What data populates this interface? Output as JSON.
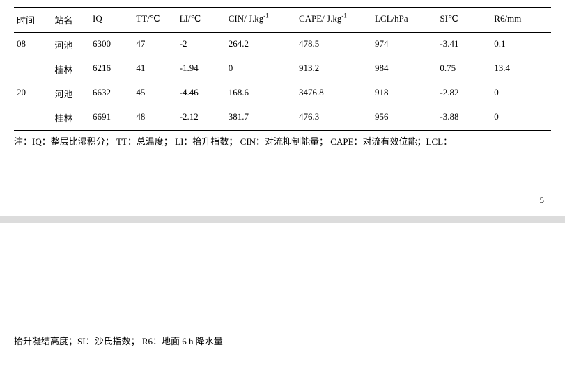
{
  "table": {
    "columns": {
      "time": "时间",
      "station": "站名",
      "iq": "IQ",
      "tt": "TT/℃",
      "li": "LI/℃",
      "cin_prefix": "CIN/ J.kg",
      "cin_sup": "-1",
      "cape_prefix": "CAPE/ J.kg",
      "cape_sup": "-1",
      "lcl": "LCL/hPa",
      "si": "SI℃",
      "r6": "R6/mm"
    },
    "rows": [
      {
        "time": "08",
        "station": "河池",
        "iq": "6300",
        "tt": "47",
        "li": "-2",
        "cin": "264.2",
        "cape": "478.5",
        "lcl": "974",
        "si": "-3.41",
        "r6": "0.1"
      },
      {
        "time": "",
        "station": "桂林",
        "iq": "6216",
        "tt": "41",
        "li": "-1.94",
        "cin": "0",
        "cape": "913.2",
        "lcl": "984",
        "si": "0.75",
        "r6": "13.4"
      },
      {
        "time": "20",
        "station": "河池",
        "iq": "6632",
        "tt": "45",
        "li": "-4.46",
        "cin": "168.6",
        "cape": "3476.8",
        "lcl": "918",
        "si": "-2.82",
        "r6": "0"
      },
      {
        "time": "",
        "station": "桂林",
        "iq": "6691",
        "tt": "48",
        "li": "-2.12",
        "cin": "381.7",
        "cape": "476.3",
        "lcl": "956",
        "si": "-3.88",
        "r6": "0"
      }
    ]
  },
  "note1": {
    "prefix": "注：",
    "items": [
      "IQ：整层比湿积分；",
      " TT：总温度；",
      " LI：抬升指数；",
      " CIN：对流抑制能量；",
      " CAPE：对流有效位能；",
      "LCL："
    ]
  },
  "pageNumber": "5",
  "note2": {
    "items": [
      "抬升凝结高度；",
      "SI：沙氏指数；",
      " R6：地面 6  h 降水量"
    ]
  },
  "style": {
    "font_family": "SimSun",
    "font_size_pt": 10,
    "text_color": "#000000",
    "background_color": "#ffffff",
    "rule_color": "#000000",
    "separator_color": "#dcdcdc",
    "col_widths_pct": [
      7,
      7,
      8,
      8,
      9,
      13,
      14,
      12,
      10,
      11
    ]
  }
}
